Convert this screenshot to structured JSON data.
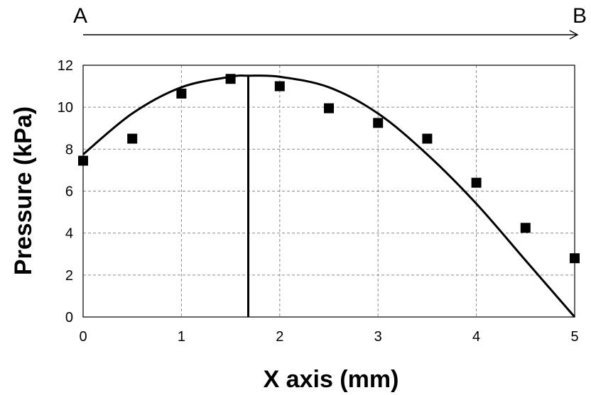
{
  "chart_data": {
    "type": "scatter",
    "title": "",
    "xlabel": "X axis (mm)",
    "ylabel": "Pressure (kPa)",
    "xlim": [
      0,
      5
    ],
    "ylim": [
      0,
      12
    ],
    "x_ticks": [
      "0",
      "1",
      "2",
      "3",
      "4",
      "5"
    ],
    "y_ticks": [
      "0",
      "2",
      "4",
      "6",
      "8",
      "10",
      "12"
    ],
    "grid": true,
    "legend": "none",
    "arrow": {
      "start_label": "A",
      "end_label": "B"
    },
    "series": [
      {
        "kind": "points",
        "marker": "square",
        "x": [
          0,
          0.5,
          1,
          1.5,
          2,
          2.5,
          3,
          3.5,
          4,
          4.5,
          5
        ],
        "y": [
          7.45,
          8.5,
          10.65,
          11.35,
          11.0,
          9.95,
          9.25,
          8.5,
          6.4,
          4.25,
          2.8
        ]
      },
      {
        "kind": "fit-curve",
        "x": [
          0,
          0.5,
          1,
          1.5,
          1.68,
          2,
          2.5,
          3,
          3.5,
          4,
          4.5,
          5
        ],
        "y": [
          7.75,
          9.7,
          10.95,
          11.45,
          11.5,
          11.45,
          10.95,
          9.7,
          7.75,
          5.4,
          2.7,
          0.0
        ]
      }
    ],
    "vertical_marker_x": 1.68,
    "colors": {
      "points": "#000000",
      "curve": "#000000",
      "grid": "#8c8c8c"
    }
  }
}
